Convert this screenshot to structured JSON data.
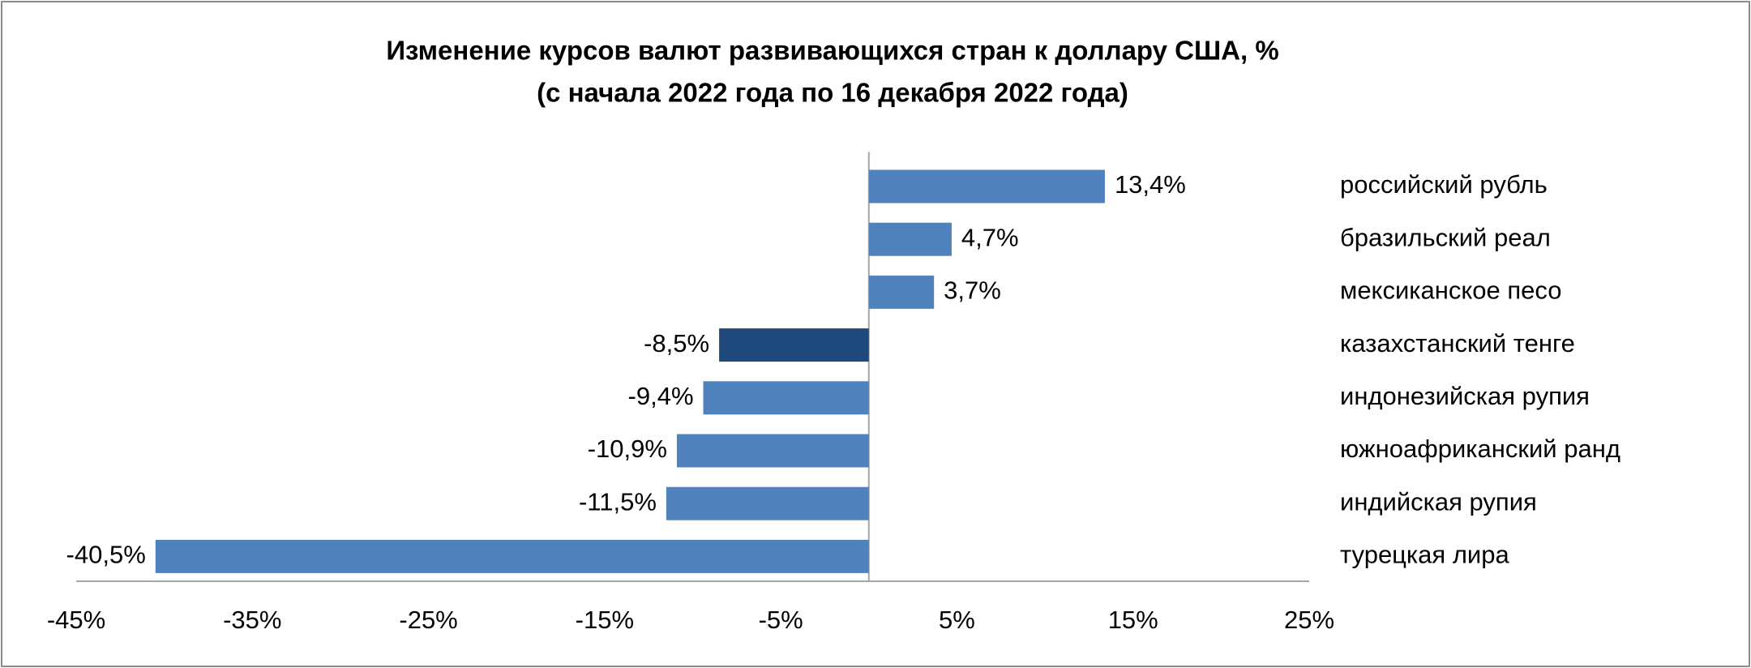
{
  "chart_data": {
    "type": "bar",
    "orientation": "horizontal",
    "title": "Изменение курсов валют развивающихся стран к доллару США, %",
    "subtitle": "(с начала 2022 года по 16 декабря 2022 года)",
    "categories": [
      "российский рубль",
      "бразильский реал",
      "мексиканское песо",
      "казахстанский тенге",
      "индонезийская рупия",
      "южноафриканский ранд",
      "индийская рупия",
      "турецкая лира"
    ],
    "values": [
      13.4,
      4.7,
      3.7,
      -8.5,
      -9.4,
      -10.9,
      -11.5,
      -40.5
    ],
    "value_labels": [
      "13,4%",
      "4,7%",
      "3,7%",
      "-8,5%",
      "-9,4%",
      "-10,9%",
      "-11,5%",
      "-40,5%"
    ],
    "colors": [
      "#4f81bd",
      "#4f81bd",
      "#4f81bd",
      "#1f497d",
      "#4f81bd",
      "#4f81bd",
      "#4f81bd",
      "#4f81bd"
    ],
    "xlim": [
      -45,
      25
    ],
    "xticks": [
      {
        "value": -45,
        "label": "-45%"
      },
      {
        "value": -35,
        "label": "-35%"
      },
      {
        "value": -25,
        "label": "-25%"
      },
      {
        "value": -15,
        "label": "-15%"
      },
      {
        "value": -5,
        "label": "-5%"
      },
      {
        "value": 5,
        "label": "5%"
      },
      {
        "value": 15,
        "label": "15%"
      },
      {
        "value": 25,
        "label": "25%"
      }
    ],
    "grid": false
  }
}
